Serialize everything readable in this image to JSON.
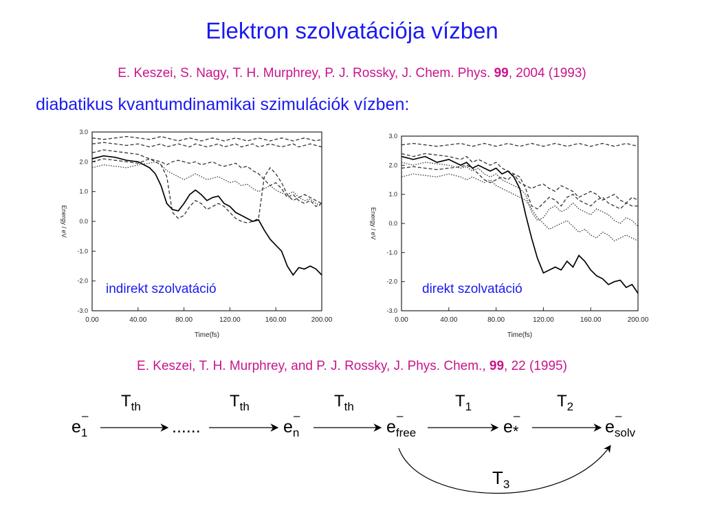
{
  "slide": {
    "title": "Elektron szolvatációja vízben",
    "reference1": {
      "authors": "E. Keszei, S. Nagy, T. H. Murphrey, P. J. Rossky, J. Chem. Phys. ",
      "volume": "99",
      "rest": ", 2004 (1993)"
    },
    "subtitle": "diabatikus kvantumdinamikai szimulációk vízben:",
    "reference2": {
      "authors": "E. Keszei, T. H. Murphrey, and P. J. Rossky, J. Phys. Chem., ",
      "volume": "99",
      "rest": ", 22 (1995)"
    }
  },
  "chart_data": [
    {
      "type": "line",
      "annotation": "indirekt szolvatáció",
      "xlabel": "Time(fs)",
      "ylabel": "Energy / eV",
      "xlim": [
        0,
        200
      ],
      "ylim": [
        -3.0,
        3.0
      ],
      "x_ticks": [
        "0.00",
        "40.00",
        "80.00",
        "120.00",
        "160.00",
        "200.00"
      ],
      "y_ticks": [
        "3.0",
        "2.0",
        "1.0",
        "0.0",
        "-1.0",
        "-2.0",
        "-3.0"
      ],
      "grid": false,
      "ground_state": {
        "x": [
          0,
          10,
          20,
          30,
          40,
          50,
          55,
          60,
          65,
          70,
          75,
          80,
          85,
          90,
          95,
          100,
          105,
          110,
          115,
          120,
          125,
          130,
          135,
          140,
          145,
          150,
          155,
          160,
          165,
          170,
          175,
          180,
          185,
          190,
          195,
          200
        ],
        "y": [
          2.1,
          2.2,
          2.15,
          2.05,
          2.0,
          1.8,
          1.6,
          1.2,
          0.6,
          0.4,
          0.35,
          0.6,
          0.9,
          1.05,
          0.9,
          0.7,
          0.8,
          0.85,
          0.6,
          0.5,
          0.3,
          0.2,
          0.1,
          0.0,
          0.05,
          -0.3,
          -0.6,
          -0.8,
          -1.0,
          -1.5,
          -1.8,
          -1.55,
          -1.6,
          -1.5,
          -1.6,
          -1.8
        ]
      },
      "excited_states": [
        {
          "style": "dashed",
          "y": [
            2.6,
            2.65,
            2.6,
            2.55,
            2.6,
            2.5,
            2.55,
            2.6,
            2.5,
            2.55,
            2.6,
            2.55,
            2.5,
            2.6,
            2.55,
            2.5,
            2.55,
            2.6,
            2.5,
            2.55,
            2.6,
            2.5,
            2.55,
            2.6,
            2.5,
            2.55,
            2.6,
            2.55,
            2.5,
            2.55,
            2.6,
            2.5,
            2.55,
            2.6,
            2.55,
            2.5
          ]
        },
        {
          "style": "dashed",
          "y": [
            2.3,
            2.4,
            2.35,
            2.3,
            2.25,
            2.1,
            2.0,
            1.9,
            1.5,
            0.3,
            0.1,
            0.2,
            0.5,
            0.7,
            0.6,
            0.4,
            0.5,
            0.6,
            0.5,
            0.3,
            0.1,
            0.0,
            -0.05,
            0.0,
            0.1,
            1.5,
            1.8,
            1.6,
            1.3,
            0.9,
            0.7,
            0.8,
            0.9,
            0.8,
            0.7,
            0.6
          ]
        },
        {
          "style": "dashed",
          "y": [
            2.0,
            2.1,
            2.05,
            2.0,
            1.95,
            2.1,
            2.05,
            2.0,
            1.9,
            2.0,
            2.05,
            2.0,
            1.95,
            2.0,
            1.9,
            1.95,
            2.0,
            1.9,
            1.85,
            1.9,
            1.95,
            1.8,
            1.85,
            1.7,
            1.6,
            1.4,
            1.2,
            1.3,
            1.1,
            0.8,
            0.9,
            0.7,
            0.6,
            0.7,
            0.5,
            0.6
          ]
        },
        {
          "style": "dotted",
          "y": [
            1.8,
            1.9,
            1.85,
            1.8,
            1.9,
            1.95,
            2.0,
            1.9,
            1.7,
            1.6,
            1.5,
            1.4,
            1.5,
            1.6,
            1.5,
            1.4,
            1.45,
            1.5,
            1.4,
            1.3,
            1.35,
            1.2,
            1.25,
            1.1,
            1.0,
            1.1,
            1.2,
            1.05,
            0.95,
            0.9,
            1.0,
            0.8,
            0.7,
            0.75,
            0.6,
            0.5
          ]
        },
        {
          "style": "dashed",
          "y": [
            2.8,
            2.75,
            2.8,
            2.85,
            2.8,
            2.75,
            2.8,
            2.85,
            2.8,
            2.75,
            2.7,
            2.75,
            2.8,
            2.75,
            2.7,
            2.75,
            2.8,
            2.75,
            2.7,
            2.75,
            2.8,
            2.75,
            2.7,
            2.75,
            2.8,
            2.75,
            2.7,
            2.75,
            2.8,
            2.75,
            2.7,
            2.75,
            2.8,
            2.75,
            2.7,
            2.75
          ]
        }
      ]
    },
    {
      "type": "line",
      "annotation": "direkt szolvatáció",
      "xlabel": "Time(fs)",
      "ylabel": "Energy / eV",
      "xlim": [
        0,
        200
      ],
      "ylim": [
        -3.0,
        3.0
      ],
      "x_ticks": [
        "0.00",
        "40.00",
        "80.00",
        "120.00",
        "160.00",
        "200.00"
      ],
      "y_ticks": [
        "3.0",
        "2.0",
        "1.0",
        "0.0",
        "-1.0",
        "-2.0",
        "-3.0"
      ],
      "grid": false,
      "ground_state": {
        "x": [
          0,
          10,
          20,
          30,
          40,
          50,
          55,
          60,
          65,
          70,
          75,
          80,
          85,
          90,
          95,
          100,
          105,
          110,
          115,
          120,
          125,
          130,
          135,
          140,
          145,
          150,
          155,
          160,
          165,
          170,
          175,
          180,
          185,
          190,
          195,
          200
        ],
        "y": [
          2.3,
          2.2,
          2.3,
          2.1,
          2.2,
          2.0,
          2.1,
          1.9,
          2.0,
          1.9,
          1.8,
          1.9,
          1.7,
          1.8,
          1.6,
          1.2,
          0.3,
          -0.5,
          -1.2,
          -1.7,
          -1.6,
          -1.5,
          -1.6,
          -1.3,
          -1.5,
          -1.1,
          -1.3,
          -1.6,
          -1.8,
          -1.9,
          -2.1,
          -2.0,
          -1.95,
          -2.2,
          -2.1,
          -2.4
        ]
      },
      "excited_states": [
        {
          "style": "dashed",
          "y": [
            2.7,
            2.75,
            2.7,
            2.65,
            2.7,
            2.75,
            2.7,
            2.65,
            2.7,
            2.75,
            2.7,
            2.65,
            2.7,
            2.75,
            2.7,
            2.65,
            2.7,
            2.75,
            2.7,
            2.65,
            2.7,
            2.75,
            2.7,
            2.65,
            2.7,
            2.75,
            2.7,
            2.65,
            2.7,
            2.75,
            2.7,
            2.65,
            2.7,
            2.75,
            2.7,
            2.65
          ]
        },
        {
          "style": "dashed",
          "y": [
            2.4,
            2.3,
            2.4,
            2.35,
            2.3,
            2.2,
            2.3,
            2.1,
            2.2,
            2.1,
            2.0,
            2.1,
            1.9,
            1.8,
            1.7,
            1.6,
            1.2,
            0.6,
            0.5,
            0.7,
            0.9,
            0.8,
            0.6,
            0.9,
            1.0,
            0.8,
            0.7,
            0.6,
            0.8,
            0.9,
            0.7,
            0.6,
            0.5,
            0.7,
            0.6,
            0.6
          ]
        },
        {
          "style": "dotted",
          "y": [
            2.1,
            2.0,
            2.1,
            2.05,
            2.0,
            1.9,
            1.95,
            1.8,
            1.9,
            1.7,
            1.6,
            1.7,
            1.5,
            1.4,
            1.3,
            1.2,
            1.0,
            0.4,
            0.1,
            0.2,
            0.5,
            0.6,
            0.4,
            0.5,
            0.7,
            0.5,
            0.4,
            0.3,
            0.5,
            0.4,
            0.3,
            0.1,
            0.0,
            0.2,
            0.1,
            -0.1
          ]
        },
        {
          "style": "dashed",
          "y": [
            1.9,
            1.95,
            1.9,
            1.85,
            1.9,
            1.95,
            2.0,
            1.9,
            1.7,
            1.5,
            1.4,
            1.5,
            1.6,
            1.5,
            1.7,
            1.4,
            1.3,
            1.2,
            1.3,
            1.35,
            1.2,
            1.1,
            1.3,
            1.2,
            1.1,
            0.9,
            1.0,
            1.1,
            1.0,
            0.8,
            0.9,
            1.0,
            0.8,
            0.7,
            0.9,
            0.8
          ]
        },
        {
          "style": "dotted",
          "y": [
            1.6,
            1.7,
            1.65,
            1.6,
            1.7,
            1.6,
            1.5,
            1.6,
            1.5,
            1.4,
            1.5,
            1.3,
            1.2,
            1.1,
            1.0,
            0.9,
            0.8,
            0.5,
            0.2,
            0.0,
            -0.2,
            -0.1,
            0.0,
            0.1,
            -0.1,
            -0.3,
            -0.2,
            -0.4,
            -0.5,
            -0.3,
            -0.4,
            -0.6,
            -0.5,
            -0.4,
            -0.5,
            -0.6
          ]
        }
      ]
    }
  ],
  "scheme": {
    "labels": {
      "t1": {
        "main": "T",
        "sub": "th"
      },
      "t2": {
        "main": "T",
        "sub": "th"
      },
      "t3": {
        "main": "T",
        "sub": "th"
      },
      "t4": {
        "main": "T",
        "sub": "1"
      },
      "t5": {
        "main": "T",
        "sub": "2"
      },
      "t6": {
        "main": "T",
        "sub": "3"
      }
    },
    "species": {
      "s1": {
        "main": "e",
        "sup": "–",
        "sub": "1"
      },
      "s2": {
        "main": "......"
      },
      "s3": {
        "main": "e",
        "sup": "–",
        "sub": "n"
      },
      "s4": {
        "main": "e",
        "sup": "–",
        "sub": "free"
      },
      "s5": {
        "main": "e",
        "sup": "–",
        "sub": "*"
      },
      "s6": {
        "main": "e",
        "sup": "–",
        "sub": "solv"
      }
    }
  }
}
